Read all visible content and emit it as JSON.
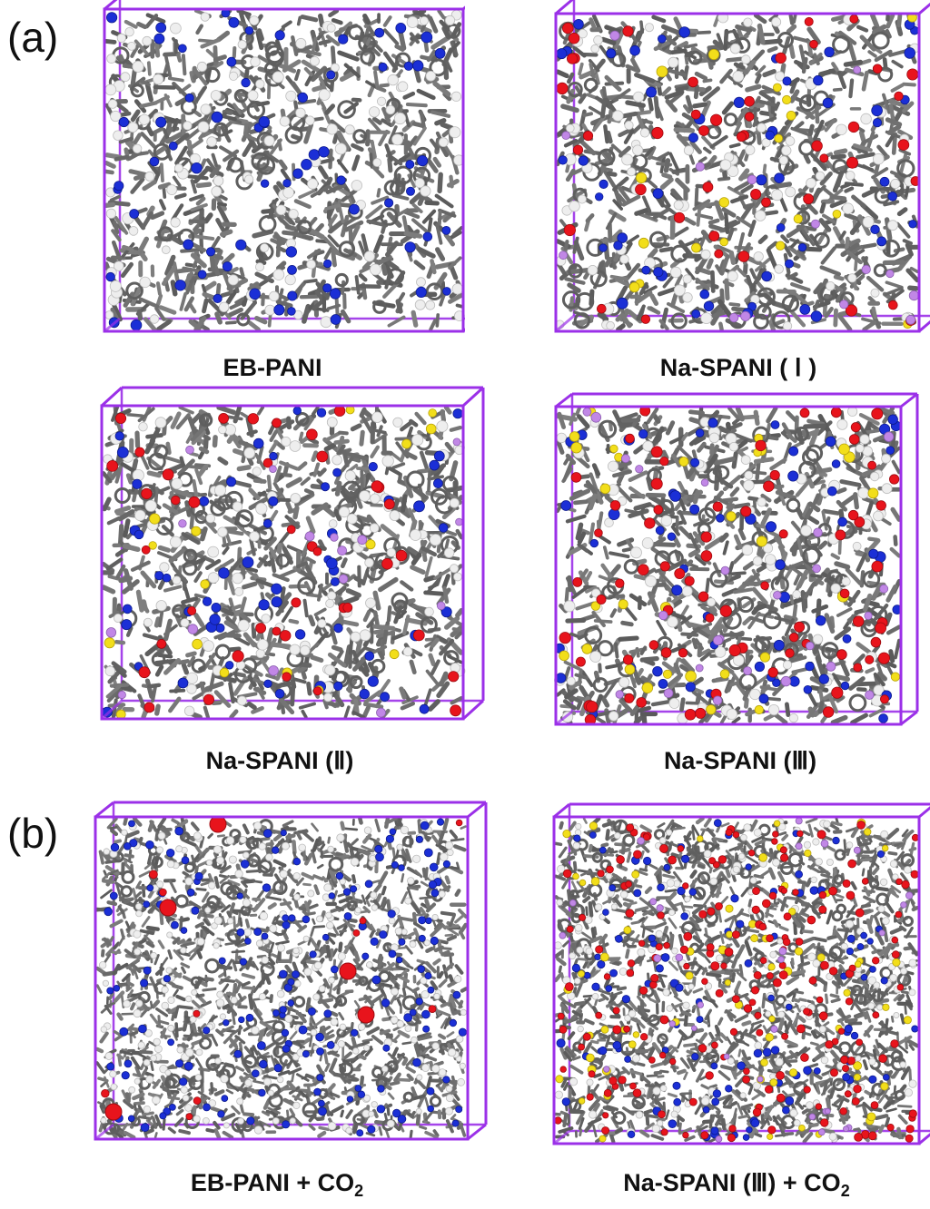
{
  "figure": {
    "panel_a_label": "(a)",
    "panel_b_label": "(b)",
    "cells": [
      {
        "id": "eb-pani",
        "label": "EB-PANI",
        "sub": "",
        "atoms": {
          "blue": 70,
          "red": 0,
          "yellow": 0,
          "purple": 0,
          "white": 120
        },
        "dense": false
      },
      {
        "id": "na-spani-1",
        "label": "Na-SPANI ( Ⅰ )",
        "sub": "",
        "atoms": {
          "blue": 55,
          "red": 45,
          "yellow": 18,
          "purple": 14,
          "white": 90
        },
        "dense": false
      },
      {
        "id": "na-spani-2",
        "label": "Na-SPANI (Ⅱ)",
        "sub": "",
        "atoms": {
          "blue": 60,
          "red": 40,
          "yellow": 16,
          "purple": 16,
          "white": 110
        },
        "dense": false
      },
      {
        "id": "na-spani-3",
        "label": "Na-SPANI (Ⅲ)",
        "sub": "",
        "atoms": {
          "blue": 60,
          "red": 75,
          "yellow": 30,
          "purple": 24,
          "white": 90
        },
        "dense": false
      },
      {
        "id": "eb-pani-co2",
        "label": "EB-PANI + CO",
        "sub": "2",
        "atoms": {
          "blue": 160,
          "red": 10,
          "yellow": 0,
          "purple": 0,
          "white": 260
        },
        "dense": true
      },
      {
        "id": "na-spani-3-co2",
        "label": "Na-SPANI (Ⅲ) + CO",
        "sub": "2",
        "atoms": {
          "blue": 110,
          "red": 190,
          "yellow": 70,
          "purple": 30,
          "white": 200
        },
        "dense": true
      }
    ],
    "colors": {
      "box": "#9b30e8",
      "carbon": "#6d6d6d",
      "nitrogen": "#1b2fd6",
      "oxygen": "#e8141c",
      "sulfur": "#f2de1a",
      "sodium": "#c187e6",
      "hydrogen": "#eeeeee"
    }
  }
}
